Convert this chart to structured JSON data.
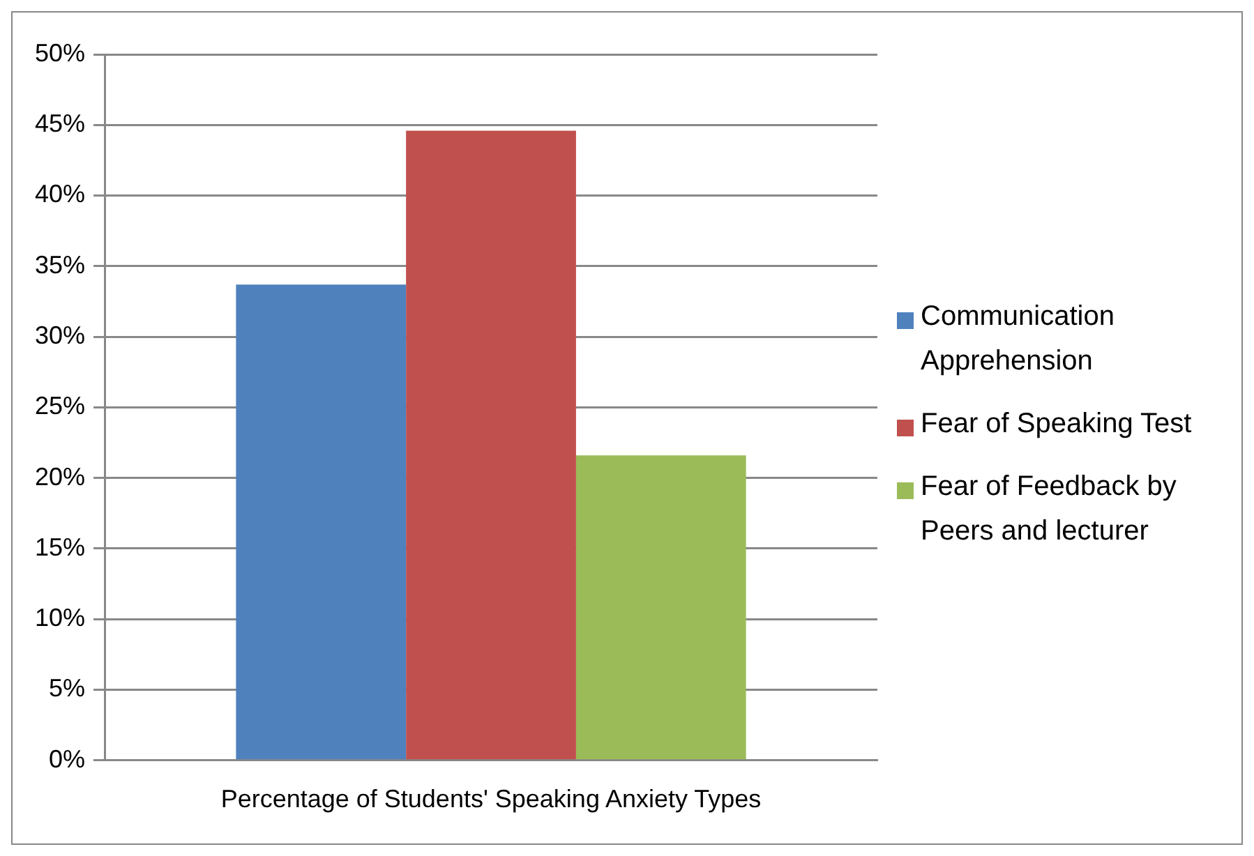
{
  "chart_data": {
    "type": "bar",
    "categories": [
      "Percentage of Students' Speaking Anxiety Types"
    ],
    "series": [
      {
        "name": "Communication Apprehension",
        "color": "#4f81bd",
        "values": [
          33.7
        ]
      },
      {
        "name": "Fear of Speaking Test",
        "color": "#c0504d",
        "values": [
          44.6
        ]
      },
      {
        "name": "Fear of Feedback by Peers and lecturer",
        "color": "#9bbb59",
        "values": [
          21.6
        ]
      }
    ],
    "ylim": [
      0,
      50
    ],
    "yticks": [
      {
        "value": 0,
        "label": "0%"
      },
      {
        "value": 5,
        "label": "5%"
      },
      {
        "value": 10,
        "label": "10%"
      },
      {
        "value": 15,
        "label": "15%"
      },
      {
        "value": 20,
        "label": "20%"
      },
      {
        "value": 25,
        "label": "25%"
      },
      {
        "value": 30,
        "label": "30%"
      },
      {
        "value": 35,
        "label": "35%"
      },
      {
        "value": 40,
        "label": "40%"
      },
      {
        "value": 45,
        "label": "45%"
      },
      {
        "value": 50,
        "label": "50%"
      }
    ],
    "grid": "y",
    "legend": "right"
  }
}
